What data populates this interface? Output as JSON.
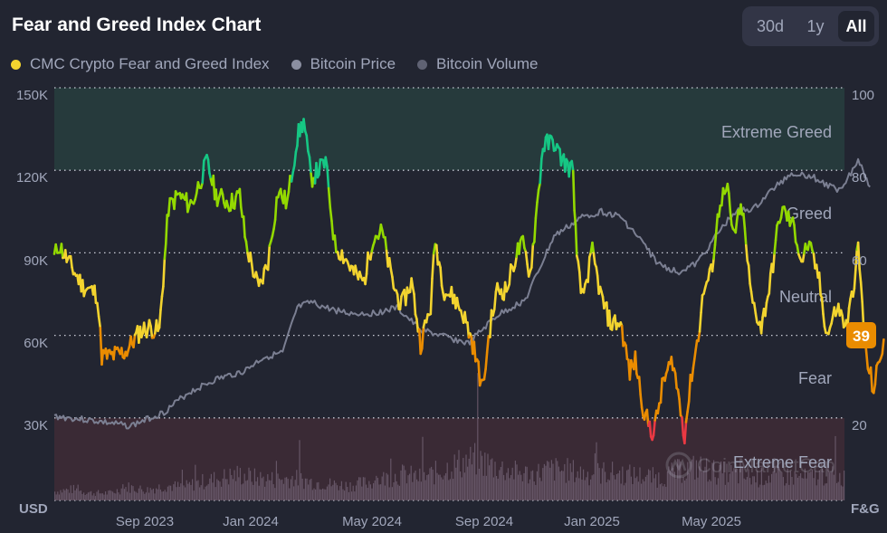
{
  "header": {
    "title": "Fear and Greed Index Chart"
  },
  "range_buttons": [
    {
      "label": "30d",
      "active": false
    },
    {
      "label": "1y",
      "active": false
    },
    {
      "label": "All",
      "active": true
    }
  ],
  "legend": [
    {
      "label": "CMC Crypto Fear and Greed Index",
      "color": "#f3d42f"
    },
    {
      "label": "Bitcoin Price",
      "color": "#8a8ea0"
    },
    {
      "label": "Bitcoin Volume",
      "color": "#5f6273"
    }
  ],
  "current_badge": {
    "value": "39",
    "color": "#ea8c00"
  },
  "watermark": "CoinMarketCap",
  "chart_data": {
    "type": "line",
    "title": "Fear and Greed Index Chart",
    "left_axis": {
      "unit": "USD",
      "ticks": [
        "150K",
        "120K",
        "90K",
        "60K",
        "30K"
      ],
      "range": [
        0,
        150000
      ]
    },
    "right_axis": {
      "unit": "F&G",
      "ticks": [
        "100",
        "80",
        "60",
        "20"
      ],
      "range": [
        0,
        100
      ]
    },
    "x_ticks": [
      {
        "label": "Sep 2023",
        "date": "2023-09-01"
      },
      {
        "label": "Jan 2024",
        "date": "2024-01-01"
      },
      {
        "label": "May 2024",
        "date": "2024-05-01"
      },
      {
        "label": "Sep 2024",
        "date": "2024-09-01"
      },
      {
        "label": "Jan 2025",
        "date": "2025-01-01"
      },
      {
        "label": "May 2025",
        "date": "2025-05-01"
      }
    ],
    "x_range": [
      "2023-05-20",
      "2025-10-01"
    ],
    "zones": [
      {
        "label": "Extreme Greed",
        "from": 80,
        "to": 100,
        "color": "#263a3c"
      },
      {
        "label": "Greed",
        "from": 60,
        "to": 80
      },
      {
        "label": "Neutral",
        "from": 40,
        "to": 60
      },
      {
        "label": "Fear",
        "from": 20,
        "to": 40
      },
      {
        "label": "Extreme Fear",
        "from": 0,
        "to": 20,
        "color": "#3a2a35"
      }
    ],
    "series": [
      {
        "name": "CMC Crypto Fear and Greed Index",
        "day_offsets": [
          0,
          5,
          15,
          31,
          47,
          52,
          62,
          78,
          94,
          104,
          115,
          125,
          136,
          146,
          151,
          159,
          167,
          177,
          193,
          203,
          210,
          224,
          234,
          245,
          255,
          266,
          273,
          281,
          297,
          302,
          307,
          318,
          328,
          339,
          349,
          359,
          370,
          380,
          391,
          401,
          412,
          417,
          427,
          438,
          448,
          458,
          469,
          477,
          485,
          495,
          506,
          513,
          521,
          527,
          535,
          547,
          552,
          562,
          568,
          572,
          578,
          589,
          599,
          609,
          620,
          630,
          636,
          646,
          656,
          667,
          677,
          690,
          698,
          705,
          711,
          719,
          729,
          737,
          743,
          753,
          763,
          774,
          784,
          794,
          799,
          810,
          818,
          825,
          836,
          846,
          857,
          867,
          873,
          880,
          889,
          897,
          908
        ],
        "values": [
          59,
          62,
          58,
          52,
          50,
          35,
          35,
          36,
          41,
          42,
          41,
          71,
          74,
          72,
          72,
          77,
          82,
          74,
          72,
          74,
          62,
          51,
          58,
          75,
          72,
          88,
          92,
          78,
          82,
          72,
          62,
          59,
          55,
          53,
          64,
          65,
          53,
          47,
          53,
          38,
          47,
          63,
          51,
          49,
          45,
          38,
          27,
          42,
          51,
          51,
          60,
          62,
          55,
          68,
          86,
          87,
          84,
          81,
          80,
          58,
          49,
          60,
          49,
          43,
          43,
          31,
          34,
          21,
          16,
          29,
          34,
          16,
          31,
          40,
          51,
          55,
          73,
          75,
          64,
          71,
          49,
          42,
          53,
          69,
          70,
          66,
          58,
          62,
          55,
          40,
          47,
          42,
          49,
          61,
          34,
          27,
          39
        ]
      },
      {
        "name": "Bitcoin Price",
        "unit": "USD",
        "day_offsets": [
          0,
          42,
          83,
          120,
          146,
          177,
          208,
          229,
          250,
          266,
          281,
          297,
          323,
          349,
          375,
          401,
          422,
          453,
          484,
          516,
          547,
          578,
          599,
          620,
          641,
          661,
          682,
          703,
          724,
          745,
          766,
          786,
          807,
          828,
          849,
          859,
          872,
          880,
          893
        ],
        "values": [
          30600,
          29000,
          27000,
          32000,
          39000,
          44000,
          47000,
          52000,
          53600,
          70000,
          72000,
          70000,
          68000,
          68000,
          70000,
          62000,
          60000,
          57000,
          67000,
          73000,
          96000,
          103000,
          105000,
          103000,
          95000,
          86000,
          83000,
          86000,
          96000,
          105000,
          106000,
          113000,
          119000,
          118000,
          114000,
          113000,
          119000,
          124000,
          114000
        ]
      },
      {
        "name": "Bitcoin Volume",
        "note": "relative volume, fraction of lower band height",
        "values": [
          0.12,
          0.15,
          0.1,
          0.1,
          0.18,
          0.14,
          0.2,
          0.18,
          0.25,
          0.3,
          0.35,
          0.3,
          0.28,
          0.3,
          0.25,
          0.22,
          0.2,
          0.24,
          0.3,
          0.35,
          0.3,
          0.4,
          0.5,
          0.55,
          0.45,
          0.38,
          0.35,
          0.42,
          0.4,
          0.35,
          0.38,
          0.35,
          0.33,
          0.3,
          0.4,
          0.45,
          0.38,
          0.35,
          0.3,
          0.33,
          0.32,
          0.3,
          0.35,
          0.3
        ]
      }
    ]
  }
}
